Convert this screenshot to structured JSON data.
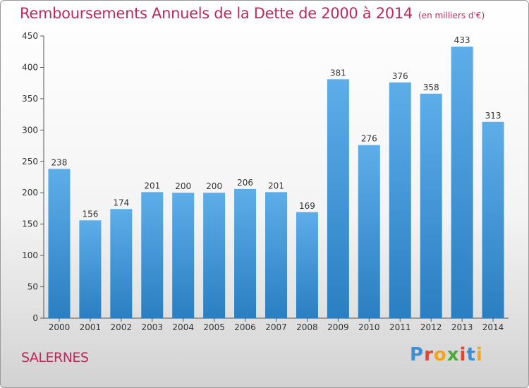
{
  "title": "Remboursements Annuels de la Dette de 2000 à 2014",
  "unit": "(en milliers d'€)",
  "commune": "SALERNES",
  "logo": {
    "text": "Proxiti",
    "letters": [
      "P",
      "r",
      "o",
      "x",
      "i",
      "t",
      "i"
    ],
    "colors": [
      "#3d8fd1",
      "#e8442a",
      "#f2a51c",
      "#4aab3a",
      "#e8442a",
      "#3d8fd1",
      "#f2a51c"
    ]
  },
  "colors": {
    "accent": "#c0285c",
    "bar_top": "#5dade8",
    "bar_bottom": "#2a7fc2"
  },
  "chart_data": {
    "type": "bar",
    "title": "Remboursements Annuels de la Dette de 2000 à 2014",
    "categories": [
      "2000",
      "2001",
      "2002",
      "2003",
      "2004",
      "2005",
      "2006",
      "2007",
      "2008",
      "2009",
      "2010",
      "2011",
      "2012",
      "2013",
      "2014"
    ],
    "values": [
      238,
      156,
      174,
      201,
      200,
      200,
      206,
      201,
      169,
      381,
      276,
      376,
      358,
      433,
      313
    ],
    "ylim": [
      0,
      450
    ],
    "yticks": [
      0,
      50,
      100,
      150,
      200,
      250,
      300,
      350,
      400,
      450
    ],
    "grid": false,
    "legend": "none"
  }
}
